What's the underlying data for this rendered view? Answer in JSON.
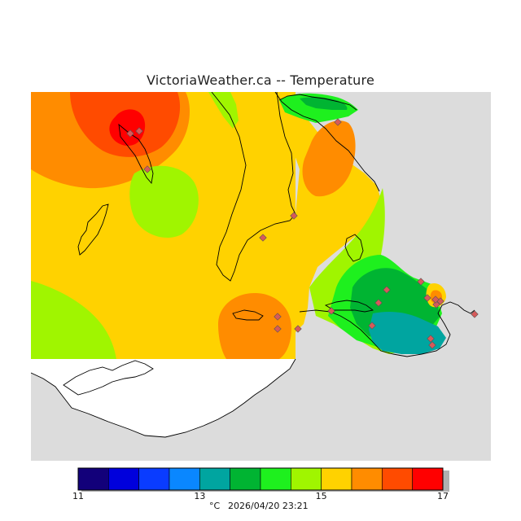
{
  "title": "VictoriaWeather.ca -- Temperature",
  "legend": {
    "unit": "°C",
    "timestamp": "2026/04/20 23:21",
    "tick_labels": [
      "11",
      "13",
      "15",
      "17"
    ],
    "tick_values": [
      11,
      13,
      15,
      17
    ],
    "min": 11,
    "max": 17,
    "bins": [
      {
        "from": 11.0,
        "to": 11.5,
        "color": "#12007a"
      },
      {
        "from": 11.5,
        "to": 12.0,
        "color": "#0000dc"
      },
      {
        "from": 12.0,
        "to": 12.5,
        "color": "#0a3cff"
      },
      {
        "from": 12.5,
        "to": 13.0,
        "color": "#0a87ff"
      },
      {
        "from": 13.0,
        "to": 13.5,
        "color": "#00a5a0"
      },
      {
        "from": 13.5,
        "to": 14.0,
        "color": "#00b432"
      },
      {
        "from": 14.0,
        "to": 14.5,
        "color": "#1ef01e"
      },
      {
        "from": 14.5,
        "to": 15.0,
        "color": "#a0f500"
      },
      {
        "from": 15.0,
        "to": 15.5,
        "color": "#ffd200"
      },
      {
        "from": 15.5,
        "to": 16.0,
        "color": "#ff8c00"
      },
      {
        "from": 16.0,
        "to": 16.5,
        "color": "#ff4b00"
      },
      {
        "from": 16.5,
        "to": 17.0,
        "color": "#ff0000"
      }
    ]
  },
  "colors": {
    "no_data": "#dcdcdc",
    "land_mask": "#ffffff",
    "coastline": "#000000",
    "station_marker": "#d65a5a"
  },
  "station_count": 21
}
